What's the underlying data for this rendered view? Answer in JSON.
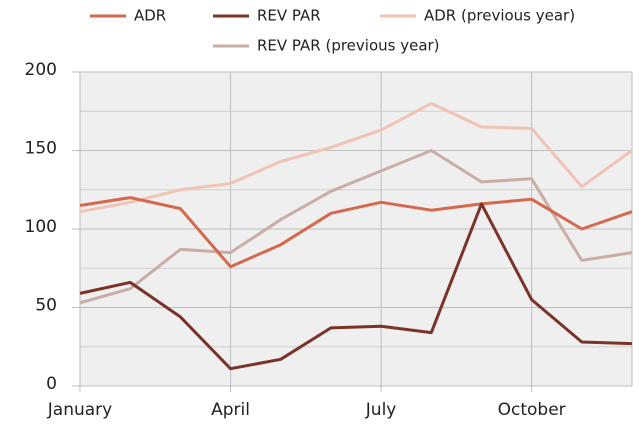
{
  "chart_data": {
    "type": "line",
    "categories": [
      "January",
      null,
      null,
      "April",
      null,
      null,
      "July",
      null,
      null,
      "October",
      null,
      null
    ],
    "series": [
      {
        "name": "ADR",
        "color": "#d4694f",
        "values": [
          115,
          120,
          113,
          76,
          90,
          110,
          117,
          112,
          116,
          119,
          100,
          111
        ]
      },
      {
        "name": "REV PAR",
        "color": "#7a3328",
        "values": [
          59,
          66,
          44,
          11,
          17,
          37,
          38,
          34,
          116,
          55,
          28,
          27
        ]
      },
      {
        "name": "ADR (previous year)",
        "color": "#f0c3b5",
        "values": [
          111,
          117,
          125,
          129,
          143,
          152,
          163,
          180,
          165,
          164,
          127,
          150
        ]
      },
      {
        "name": "REV PAR (previous year)",
        "color": "#c9ada6",
        "values": [
          53,
          62,
          87,
          85,
          106,
          124,
          137,
          150,
          130,
          132,
          80,
          85
        ]
      }
    ],
    "ylim": [
      0,
      200
    ],
    "yticks": [
      0,
      50,
      100,
      150,
      200
    ],
    "minor_ygrid": [
      25,
      75,
      125,
      175
    ],
    "grid": true,
    "legend": "top"
  }
}
